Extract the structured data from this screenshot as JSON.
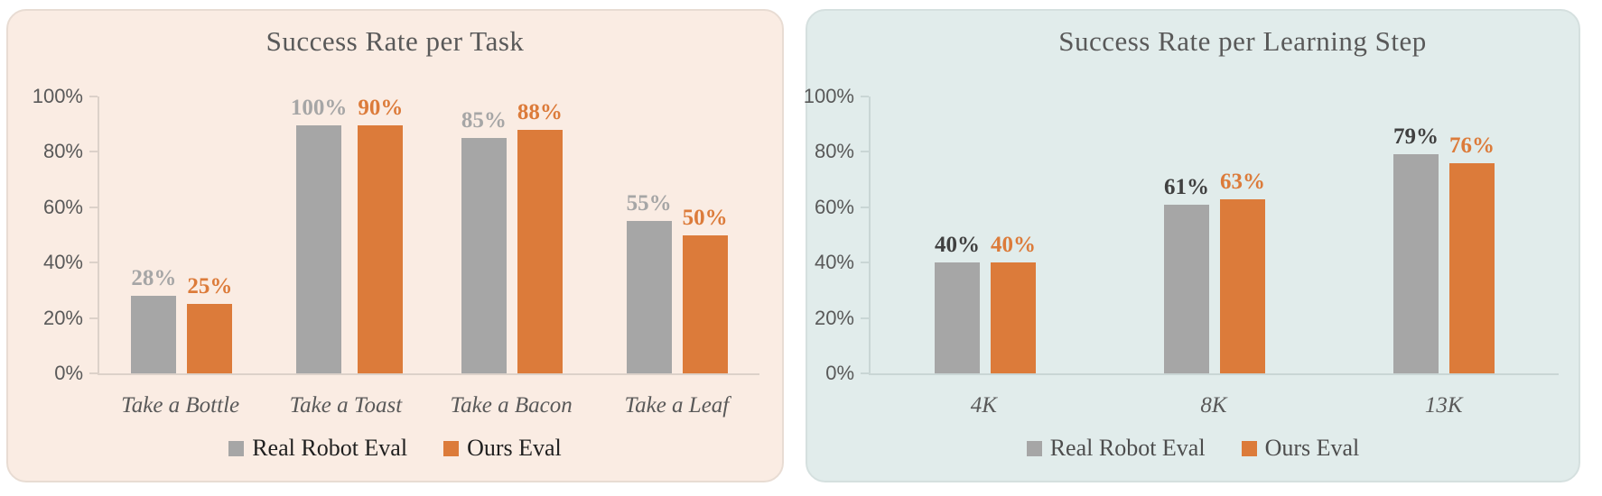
{
  "chart_data": [
    {
      "type": "bar",
      "title": "Success Rate per Task",
      "categories": [
        "Take a Bottle",
        "Take a Toast",
        "Take a Bacon",
        "Take a Leaf"
      ],
      "series": [
        {
          "name": "Real Robot Eval",
          "values": [
            28,
            100,
            85,
            55
          ],
          "color": "#A6A6A6",
          "value_label_color": "#A6A6A6"
        },
        {
          "name": "Ours Eval",
          "values": [
            25,
            90,
            88,
            50
          ],
          "color": "#DC7B3A",
          "value_label_color": "#DC7B3A"
        }
      ],
      "ytick_labels": [
        "0%",
        "20%",
        "40%",
        "60%",
        "80%",
        "100%"
      ],
      "ylim": [
        0,
        100
      ],
      "grid": false,
      "legend_position": "bottom",
      "value_label_suffix": "%",
      "panel_background": "#FAECE3",
      "panel_border": "#E8DCD3",
      "axis_color": "#DCD1C9",
      "title_color": "#595959",
      "tick_label_color": "#595959",
      "xlabel_color": "#595959",
      "legend_text_color": "#1F1F1F"
    },
    {
      "type": "bar",
      "title": "Success Rate per Learning Step",
      "categories": [
        "4K",
        "8K",
        "13K"
      ],
      "series": [
        {
          "name": "Real Robot Eval",
          "values": [
            40,
            61,
            79
          ],
          "color": "#A6A6A6",
          "value_label_color": "#404040"
        },
        {
          "name": "Ours Eval",
          "values": [
            40,
            63,
            76
          ],
          "color": "#DC7B3A",
          "value_label_color": "#DC7B3A"
        }
      ],
      "ytick_labels": [
        "0%",
        "20%",
        "40%",
        "60%",
        "80%",
        "100%"
      ],
      "ylim": [
        0,
        100
      ],
      "grid": false,
      "legend_position": "bottom",
      "value_label_suffix": "%",
      "panel_background": "#E1ECEB",
      "panel_border": "#D5E0DF",
      "axis_color": "#C9D6D5",
      "title_color": "#595959",
      "tick_label_color": "#595959",
      "xlabel_color": "#595959",
      "legend_text_color": "#4D4D4D"
    }
  ]
}
